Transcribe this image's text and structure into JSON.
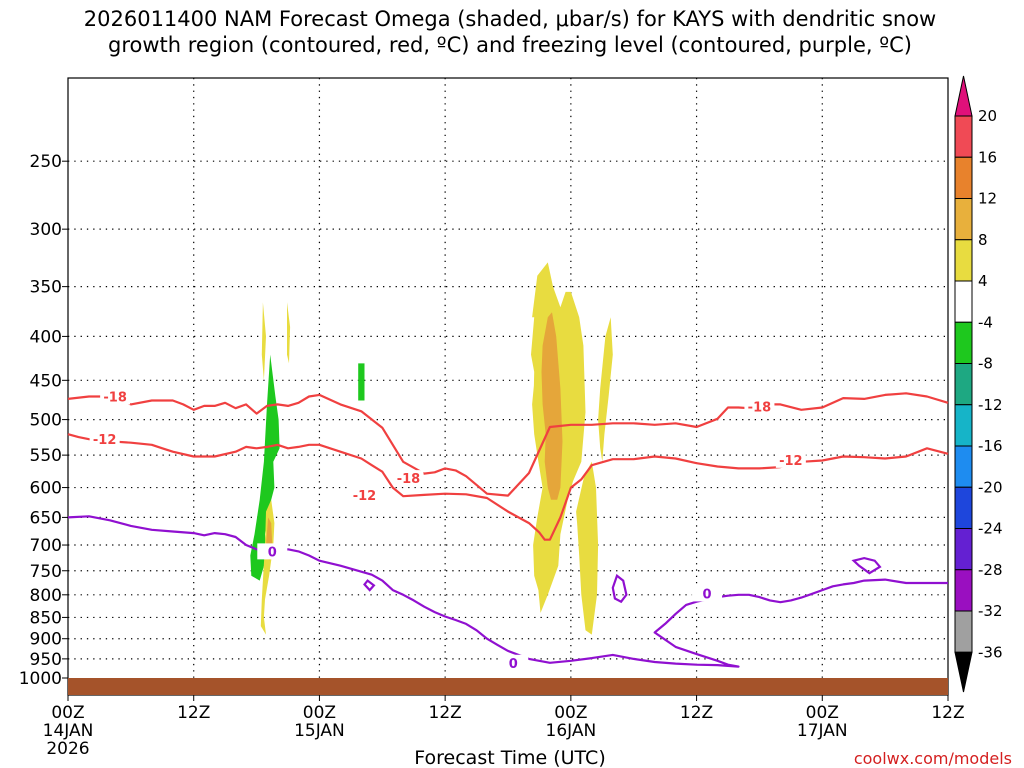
{
  "chart_data": {
    "type": "contour-time-height",
    "title_line1": "2026011400 NAM Forecast Omega (shaded, μbar/s) for KAYS with dendritic snow",
    "title_line2": "growth region (contoured, red, ºC) and freezing level (contoured, purple, ºC)",
    "xlabel": "Forecast Time (UTC)",
    "ylabel": "",
    "x_range_hours": [
      0,
      84
    ],
    "y_range_hpa": [
      1000,
      200
    ],
    "y_ticks": [
      250,
      300,
      350,
      400,
      450,
      500,
      550,
      600,
      650,
      700,
      750,
      800,
      850,
      900,
      950,
      1000
    ],
    "x_ticks": [
      {
        "hour": 0,
        "line1": "00Z",
        "line2": "14JAN",
        "line3": "2026"
      },
      {
        "hour": 12,
        "line1": "12Z",
        "line2": "",
        "line3": ""
      },
      {
        "hour": 24,
        "line1": "00Z",
        "line2": "15JAN",
        "line3": ""
      },
      {
        "hour": 36,
        "line1": "12Z",
        "line2": "",
        "line3": ""
      },
      {
        "hour": 48,
        "line1": "00Z",
        "line2": "16JAN",
        "line3": ""
      },
      {
        "hour": 60,
        "line1": "12Z",
        "line2": "",
        "line3": ""
      },
      {
        "hour": 72,
        "line1": "00Z",
        "line2": "17JAN",
        "line3": ""
      },
      {
        "hour": 84,
        "line1": "12Z",
        "line2": "",
        "line3": ""
      }
    ],
    "grid": true,
    "colorbar": {
      "labels": [
        "20",
        "16",
        "12",
        "8",
        "4",
        "-4",
        "-8",
        "-12",
        "-16",
        "-20",
        "-24",
        "-28",
        "-32",
        "-36"
      ],
      "colors": [
        "#f04a55",
        "#e8822c",
        "#e8b03c",
        "#e8dc40",
        "#ffffff",
        "#1ec81e",
        "#1ea882",
        "#16b4c8",
        "#1e8cf0",
        "#1e46dc",
        "#6420d2",
        "#9a0fc0",
        "#a0a0a0"
      ],
      "top_arrow_color": "#e0107a",
      "bottom_arrow_color": "#000000"
    },
    "contour_labels": {
      "minus18": "-18",
      "minus12": "-12",
      "zero": "0"
    },
    "series": [
      {
        "name": "-18 C isotherm",
        "color": "#f04040",
        "kind": "temperature",
        "x": [
          0,
          2,
          4,
          6,
          8,
          10,
          11,
          12,
          13,
          14,
          15,
          16,
          17,
          18,
          19,
          20,
          21,
          22,
          23,
          24,
          26,
          28,
          30,
          32,
          34,
          35,
          36,
          37,
          38,
          40,
          42,
          44,
          46,
          48,
          50,
          52,
          54,
          56,
          58,
          60,
          62,
          63,
          64,
          65,
          66,
          67,
          68,
          70,
          72,
          74,
          76,
          78,
          80,
          82,
          84
        ],
        "y": [
          473,
          470,
          470,
          480,
          475,
          475,
          480,
          487,
          482,
          482,
          478,
          485,
          480,
          492,
          482,
          480,
          482,
          478,
          470,
          468,
          480,
          489,
          511,
          560,
          578,
          576,
          570,
          573,
          582,
          610,
          613,
          577,
          510,
          507,
          507,
          505,
          505,
          507,
          505,
          510,
          499,
          484,
          484,
          485,
          482,
          480,
          480,
          487,
          484,
          472,
          473,
          468,
          466,
          470,
          478
        ]
      },
      {
        "name": "-12 C isotherm",
        "color": "#f04040",
        "kind": "temperature",
        "x": [
          0,
          1,
          2,
          4,
          6,
          8,
          9,
          10,
          12,
          14,
          16,
          17,
          18,
          19,
          20,
          21,
          22,
          23,
          24,
          26,
          28,
          29,
          30,
          31,
          32,
          34,
          36,
          38,
          40,
          42,
          44,
          45,
          45.5,
          46,
          47,
          48,
          49,
          50,
          52,
          54,
          56,
          58,
          60,
          62,
          64,
          66,
          68,
          70,
          72,
          74,
          76,
          78,
          80,
          82,
          84
        ],
        "y": [
          520,
          524,
          527,
          530,
          532,
          535,
          540,
          545,
          552,
          552,
          545,
          538,
          540,
          538,
          535,
          540,
          538,
          535,
          535,
          545,
          555,
          565,
          575,
          600,
          614,
          612,
          610,
          611,
          617,
          640,
          660,
          677,
          690,
          690,
          650,
          600,
          587,
          565,
          556,
          556,
          552,
          555,
          562,
          567,
          570,
          570,
          568,
          560,
          558,
          552,
          553,
          555,
          552,
          540,
          548
        ]
      },
      {
        "name": "0 C freezing level",
        "color": "#9010d0",
        "kind": "temperature",
        "x": [
          0,
          2,
          4,
          6,
          8,
          10,
          12,
          13,
          14,
          15,
          16,
          17,
          18,
          19,
          20,
          21,
          22,
          23,
          24,
          26,
          28,
          29,
          30,
          31,
          32,
          33,
          34,
          35,
          36,
          37,
          38,
          39,
          40,
          41,
          42,
          44,
          46,
          48,
          50,
          52,
          54,
          56,
          58,
          60,
          62,
          63,
          64,
          63,
          62,
          60,
          58,
          56,
          57,
          58,
          59,
          60,
          61,
          62,
          63,
          64,
          65,
          66,
          67,
          68,
          69,
          70,
          71,
          72,
          73,
          74,
          75,
          76,
          78,
          80,
          82,
          84
        ],
        "y": [
          650,
          648,
          655,
          665,
          672,
          675,
          678,
          682,
          678,
          680,
          685,
          700,
          708,
          710,
          710,
          708,
          712,
          720,
          730,
          740,
          752,
          758,
          770,
          790,
          800,
          812,
          826,
          838,
          848,
          856,
          865,
          880,
          900,
          915,
          930,
          950,
          960,
          955,
          948,
          940,
          950,
          958,
          962,
          965,
          966,
          968,
          970,
          965,
          955,
          938,
          920,
          885,
          865,
          842,
          822,
          815,
          810,
          805,
          802,
          800,
          800,
          805,
          812,
          816,
          812,
          806,
          798,
          790,
          782,
          778,
          775,
          770,
          768,
          775,
          775,
          775
        ]
      }
    ],
    "omega_regions": [
      {
        "name": "ascent -4 to -8 (green)",
        "color": "#1ec81e",
        "hours": [
          19.3,
          19.8,
          20.1,
          20.2,
          19.6,
          19.7,
          19.1,
          18.8,
          19.0,
          18.3,
          17.5,
          17.4,
          17.8,
          18.3,
          18.7,
          19.0
        ],
        "hpa": [
          420,
          470,
          500,
          540,
          560,
          600,
          640,
          680,
          720,
          770,
          760,
          720,
          680,
          620,
          560,
          480
        ]
      },
      {
        "name": "ascent -4 to -8 (green, small)",
        "color": "#1ec81e",
        "hours": [
          27.7,
          28.3,
          28.3,
          27.7
        ],
        "hpa": [
          430,
          430,
          475,
          475
        ]
      },
      {
        "name": "descent 4-8 (yellow)",
        "color": "#e8dc40",
        "hours": [
          44.3,
          44.8,
          45.8,
          46.3,
          47.0,
          47.5,
          48.0,
          48.8,
          49.2,
          49.4,
          49.0,
          48.2,
          47.7,
          47.0,
          46.8,
          45.8,
          45.1,
          44.9,
          44.5,
          44.4,
          44.8,
          45.3,
          44.9,
          44.5,
          44.3,
          44.6,
          44.9,
          45.0,
          44.7,
          44.4,
          44.5,
          44.2,
          44.5
        ],
        "hpa": [
          380,
          340,
          328,
          350,
          370,
          355,
          355,
          380,
          410,
          490,
          560,
          590,
          620,
          680,
          740,
          800,
          840,
          790,
          760,
          700,
          650,
          600,
          560,
          520,
          480,
          440,
          430,
          470,
          520,
          500,
          440,
          420,
          380
        ]
      },
      {
        "name": "descent 4-8 (yellow, tail)",
        "color": "#e8dc40",
        "hours": [
          48.5,
          49.3,
          50.0,
          50.4,
          50.6,
          50.5,
          50.0,
          49.4,
          49.0,
          48.8,
          48.6
        ],
        "hpa": [
          640,
          580,
          560,
          600,
          700,
          800,
          890,
          880,
          800,
          720,
          660
        ]
      },
      {
        "name": "descent 4-8 (yellow, right)",
        "color": "#e8dc40",
        "hours": [
          50.8,
          51.3,
          51.8,
          52.0,
          51.6,
          51.2,
          51.0,
          50.8,
          50.6
        ],
        "hpa": [
          460,
          400,
          380,
          420,
          470,
          520,
          560,
          540,
          500
        ]
      },
      {
        "name": "descent 8-12 (orange)",
        "color": "#e5a63a",
        "hours": [
          45.3,
          45.8,
          46.2,
          46.6,
          47.0,
          47.2,
          47.0,
          46.7,
          46.1,
          45.8,
          45.5,
          45.6,
          45.3,
          45.2
        ],
        "hpa": [
          410,
          380,
          375,
          400,
          460,
          530,
          600,
          620,
          620,
          600,
          560,
          520,
          480,
          440
        ]
      },
      {
        "name": "descent 4-8 (yellow, left cluster)",
        "color": "#e8dc40",
        "hours": [
          18.9,
          19.4,
          19.7,
          19.6,
          19.2,
          18.8,
          18.7,
          18.9,
          18.4,
          18.5,
          18.8
        ],
        "hpa": [
          640,
          620,
          660,
          700,
          760,
          810,
          850,
          890,
          870,
          810,
          700
        ]
      },
      {
        "name": "descent 8-12 (left cluster)",
        "color": "#e5a63a",
        "hours": [
          19.1,
          19.4,
          19.5,
          19.2,
          18.9
        ],
        "hpa": [
          650,
          660,
          700,
          730,
          700
        ]
      },
      {
        "name": "descent 4-8 (yellow, upper left)",
        "color": "#e8dc40",
        "hours": [
          18.6,
          18.9,
          18.7,
          18.5
        ],
        "hpa": [
          365,
          400,
          450,
          420
        ]
      },
      {
        "name": "descent 4-8 (yellow, upper thin)",
        "color": "#e8dc40",
        "hours": [
          20.9,
          21.2,
          21.1,
          20.9
        ],
        "hpa": [
          365,
          390,
          430,
          420
        ]
      }
    ],
    "freezing_loops": [
      {
        "hours": [
          28.6,
          29.2,
          28.8,
          28.3,
          28.6
        ],
        "hpa": [
          770,
          780,
          790,
          778,
          770
        ]
      },
      {
        "hours": [
          52.4,
          53.0,
          53.3,
          52.8,
          52.2,
          52.0,
          52.4
        ],
        "hpa": [
          760,
          770,
          800,
          815,
          808,
          785,
          760
        ]
      },
      {
        "hours": [
          75.0,
          76.0,
          77.0,
          77.5,
          76.5,
          75.5,
          75.0
        ],
        "hpa": [
          730,
          725,
          730,
          742,
          755,
          740,
          730
        ]
      }
    ],
    "ground_color": "#a5532a",
    "credit": "coolwx.com/models"
  }
}
